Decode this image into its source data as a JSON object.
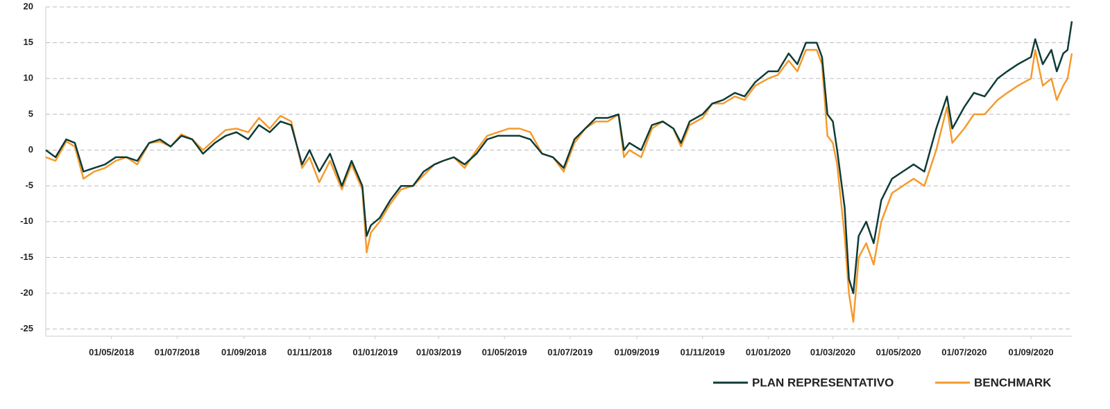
{
  "chart_data": {
    "type": "line",
    "x": [
      "01/03/2018",
      "10/03/2018",
      "20/03/2018",
      "28/03/2018",
      "05/04/2018",
      "15/04/2018",
      "25/04/2018",
      "05/05/2018",
      "15/05/2018",
      "25/05/2018",
      "05/06/2018",
      "15/06/2018",
      "25/06/2018",
      "05/07/2018",
      "15/07/2018",
      "25/07/2018",
      "05/08/2018",
      "15/08/2018",
      "25/08/2018",
      "05/09/2018",
      "15/09/2018",
      "25/09/2018",
      "05/10/2018",
      "15/10/2018",
      "25/10/2018",
      "01/11/2018",
      "10/11/2018",
      "20/11/2018",
      "01/12/2018",
      "10/12/2018",
      "20/12/2018",
      "24/12/2018",
      "28/12/2018",
      "05/01/2019",
      "15/01/2019",
      "25/01/2019",
      "05/02/2019",
      "15/02/2019",
      "25/02/2019",
      "05/03/2019",
      "15/03/2019",
      "25/03/2019",
      "05/04/2019",
      "15/04/2019",
      "25/04/2019",
      "05/05/2019",
      "15/05/2019",
      "25/05/2019",
      "05/06/2019",
      "15/06/2019",
      "25/06/2019",
      "05/07/2019",
      "15/07/2019",
      "25/07/2019",
      "05/08/2019",
      "15/08/2019",
      "20/08/2019",
      "25/08/2019",
      "05/09/2019",
      "15/09/2019",
      "25/09/2019",
      "05/10/2019",
      "12/10/2019",
      "20/10/2019",
      "01/11/2019",
      "10/11/2019",
      "20/11/2019",
      "01/12/2019",
      "10/12/2019",
      "20/12/2019",
      "01/01/2020",
      "10/01/2020",
      "20/01/2020",
      "28/01/2020",
      "05/02/2020",
      "15/02/2020",
      "20/02/2020",
      "25/02/2020",
      "01/03/2020",
      "05/03/2020",
      "12/03/2020",
      "16/03/2020",
      "20/03/2020",
      "25/03/2020",
      "01/04/2020",
      "08/04/2020",
      "15/04/2020",
      "25/04/2020",
      "05/05/2020",
      "15/05/2020",
      "25/05/2020",
      "05/06/2020",
      "15/06/2020",
      "20/06/2020",
      "01/07/2020",
      "10/07/2020",
      "20/07/2020",
      "01/08/2020",
      "10/08/2020",
      "20/08/2020",
      "01/09/2020",
      "05/09/2020",
      "12/09/2020",
      "20/09/2020",
      "25/09/2020",
      "01/10/2020",
      "05/10/2020",
      "09/10/2020"
    ],
    "series": [
      {
        "name": "PLAN REPRESENTATIVO",
        "color": "#0d3b36",
        "values": [
          0,
          -1,
          1.5,
          1,
          -3,
          -2.5,
          -2,
          -1,
          -1,
          -1.5,
          1,
          1.5,
          0.5,
          2,
          1.5,
          -0.5,
          1,
          2,
          2.5,
          1.5,
          3.5,
          2.5,
          4,
          3.5,
          -2,
          0,
          -3,
          -0.5,
          -5,
          -1.5,
          -5,
          -12,
          -10.5,
          -9.5,
          -7,
          -5,
          -5,
          -3,
          -2,
          -1.5,
          -1,
          -2,
          -0.5,
          1.5,
          2,
          2,
          2,
          1.5,
          -0.5,
          -1,
          -2.5,
          1.5,
          3,
          4.5,
          4.5,
          5,
          0,
          1,
          0,
          3.5,
          4,
          3,
          1,
          4,
          5,
          6.5,
          7,
          8,
          7.5,
          9.5,
          11,
          11,
          13.5,
          12,
          15,
          15,
          13,
          5,
          4,
          0,
          -8,
          -18,
          -20,
          -12,
          -10,
          -13,
          -7,
          -4,
          -3,
          -2,
          -3,
          3,
          7.5,
          3,
          6,
          8,
          7.5,
          10,
          11,
          12,
          13,
          15.5,
          12,
          14,
          11,
          13.5,
          14,
          18
        ]
      },
      {
        "name": "BENCHMARK",
        "color": "#f59a2c",
        "values": [
          -1,
          -1.5,
          1.2,
          0.5,
          -4,
          -3,
          -2.5,
          -1.5,
          -1,
          -2,
          1,
          1.2,
          0.5,
          2.2,
          1.5,
          0,
          1.5,
          2.8,
          3,
          2.5,
          4.5,
          3,
          4.8,
          4,
          -2.5,
          -1,
          -4.5,
          -1.5,
          -5.5,
          -2,
          -5.5,
          -14.3,
          -11.5,
          -10,
          -7.5,
          -5.5,
          -5,
          -3.5,
          -2,
          -1.5,
          -1,
          -2.5,
          0,
          2,
          2.5,
          3,
          3,
          2.5,
          -0.5,
          -1,
          -3,
          1,
          3,
          4,
          4,
          5,
          -1,
          0,
          -1,
          3,
          4,
          3,
          0.5,
          3.5,
          4.5,
          6.5,
          6.5,
          7.5,
          7,
          9,
          10,
          10.5,
          12.5,
          11,
          14,
          14,
          12,
          2,
          1,
          -2,
          -12,
          -20,
          -24,
          -15,
          -13,
          -16,
          -10,
          -6,
          -5,
          -4,
          -5,
          0,
          6,
          1,
          3,
          5,
          5,
          7,
          8,
          9,
          10,
          14,
          9,
          10,
          7,
          9,
          10,
          13.5
        ]
      }
    ],
    "xlim": [
      "01/03/2018",
      "09/10/2020"
    ],
    "xticks": [
      "01/05/2018",
      "01/07/2018",
      "01/09/2018",
      "01/11/2018",
      "01/01/2019",
      "01/03/2019",
      "01/05/2019",
      "01/07/2019",
      "01/09/2019",
      "01/11/2019",
      "01/01/2020",
      "01/03/2020",
      "01/05/2020",
      "01/07/2020",
      "01/09/2020"
    ],
    "ylim": [
      -26,
      20
    ],
    "yticks": [
      -25,
      -20,
      -15,
      -10,
      -5,
      0,
      5,
      10,
      15,
      20
    ],
    "grid": true
  }
}
